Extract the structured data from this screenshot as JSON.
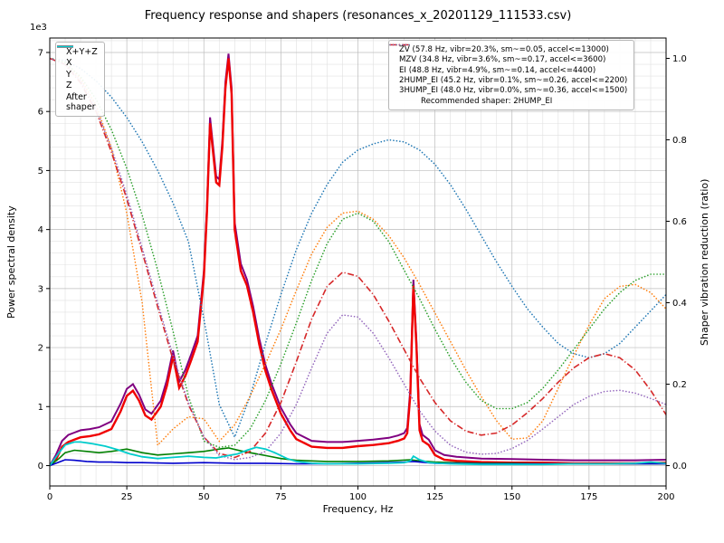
{
  "title": "Frequency response and shapers (resonances_x_20201129_111533.csv)",
  "chart_data": {
    "type": "line",
    "xlabel": "Frequency, Hz",
    "ylabel_left": "Power spectral density",
    "ylabel_right": "Shaper vibration reduction (ratio)",
    "y_multiplier_label": "1e3",
    "xlim": [
      0,
      200
    ],
    "ylim_left": [
      -0.345,
      7.245
    ],
    "ylim_right": [
      -0.05,
      1.05
    ],
    "x_ticks": [
      0,
      25,
      50,
      75,
      100,
      125,
      150,
      175,
      200
    ],
    "x_minor_step": 5,
    "y_left_ticks": [
      0,
      1,
      2,
      3,
      4,
      5,
      6,
      7
    ],
    "y_left_minor_step": 0.2,
    "y_right_ticks": [
      0,
      0.2,
      0.4,
      0.6,
      0.8,
      1
    ],
    "grid": {
      "major_color": "#bcbcbc",
      "minor_color": "#e0e0e0"
    },
    "legend_right_note": "Recommended shaper: 2HUMP_EI",
    "series": [
      {
        "name": "xyz-sum",
        "label": "X+Y+Z",
        "legend": "left",
        "axis": "left",
        "color": "#800080",
        "style": "solid",
        "width": 2.0,
        "x": [
          0,
          2,
          4,
          6,
          8,
          10,
          13,
          16,
          20,
          23,
          25,
          27,
          29,
          31,
          33,
          36,
          38,
          40,
          42,
          44,
          46,
          48,
          50,
          51,
          52,
          53,
          54,
          55,
          56,
          57,
          58,
          59,
          60,
          62,
          64,
          66,
          68,
          70,
          72,
          75,
          78,
          80,
          85,
          90,
          95,
          100,
          105,
          110,
          113,
          115,
          116,
          117,
          118,
          119,
          120,
          121,
          123,
          125,
          128,
          132,
          140,
          150,
          160,
          170,
          180,
          190,
          200
        ],
        "y": [
          0,
          0.18,
          0.42,
          0.52,
          0.56,
          0.6,
          0.62,
          0.65,
          0.75,
          1.05,
          1.3,
          1.38,
          1.2,
          0.95,
          0.88,
          1.1,
          1.45,
          1.95,
          1.42,
          1.62,
          1.9,
          2.2,
          3.3,
          4.4,
          5.9,
          5.4,
          4.9,
          4.85,
          5.5,
          6.5,
          6.98,
          6.4,
          4.12,
          3.42,
          3.15,
          2.7,
          2.15,
          1.7,
          1.38,
          0.98,
          0.7,
          0.55,
          0.42,
          0.4,
          0.4,
          0.42,
          0.44,
          0.47,
          0.51,
          0.55,
          0.64,
          1.3,
          3.15,
          2.1,
          0.7,
          0.52,
          0.44,
          0.26,
          0.18,
          0.15,
          0.12,
          0.11,
          0.1,
          0.09,
          0.09,
          0.09,
          0.1
        ]
      },
      {
        "name": "x",
        "label": "X",
        "legend": "left",
        "axis": "left",
        "color": "#f00000",
        "style": "solid",
        "width": 2.4,
        "x": [
          0,
          2,
          4,
          6,
          8,
          10,
          13,
          16,
          20,
          23,
          25,
          27,
          29,
          31,
          33,
          36,
          38,
          40,
          42,
          44,
          46,
          48,
          50,
          51,
          52,
          53,
          54,
          55,
          56,
          57,
          58,
          59,
          60,
          62,
          64,
          66,
          68,
          70,
          72,
          75,
          78,
          80,
          85,
          90,
          95,
          100,
          105,
          110,
          113,
          115,
          116,
          117,
          118,
          119,
          120,
          121,
          123,
          125,
          128,
          132,
          140,
          150,
          160,
          170,
          180,
          190,
          200
        ],
        "y": [
          0,
          0.1,
          0.32,
          0.4,
          0.44,
          0.48,
          0.5,
          0.53,
          0.62,
          0.92,
          1.18,
          1.27,
          1.1,
          0.85,
          0.78,
          1.0,
          1.35,
          1.85,
          1.32,
          1.52,
          1.8,
          2.1,
          3.2,
          4.3,
          5.8,
          5.3,
          4.8,
          4.75,
          5.4,
          6.4,
          6.9,
          6.3,
          4.0,
          3.3,
          3.05,
          2.6,
          2.05,
          1.6,
          1.28,
          0.88,
          0.6,
          0.45,
          0.32,
          0.3,
          0.3,
          0.33,
          0.35,
          0.38,
          0.42,
          0.46,
          0.55,
          1.2,
          3.05,
          2.0,
          0.6,
          0.42,
          0.35,
          0.18,
          0.1,
          0.08,
          0.06,
          0.05,
          0.05,
          0.04,
          0.04,
          0.04,
          0.05
        ]
      },
      {
        "name": "y",
        "label": "Y",
        "legend": "left",
        "axis": "left",
        "color": "#008000",
        "style": "solid",
        "width": 1.6,
        "x": [
          0,
          3,
          5,
          8,
          12,
          16,
          20,
          25,
          30,
          35,
          40,
          45,
          50,
          55,
          58,
          62,
          66,
          70,
          75,
          80,
          85,
          90,
          100,
          110,
          117,
          120,
          125,
          130,
          140,
          150,
          160,
          170,
          180,
          190,
          200
        ],
        "y": [
          0,
          0.12,
          0.22,
          0.26,
          0.24,
          0.22,
          0.24,
          0.28,
          0.22,
          0.18,
          0.2,
          0.22,
          0.24,
          0.28,
          0.3,
          0.25,
          0.21,
          0.17,
          0.12,
          0.09,
          0.08,
          0.07,
          0.07,
          0.08,
          0.1,
          0.08,
          0.06,
          0.05,
          0.04,
          0.04,
          0.03,
          0.03,
          0.03,
          0.03,
          0.03
        ]
      },
      {
        "name": "z",
        "label": "Z",
        "legend": "left",
        "axis": "left",
        "color": "#0000cc",
        "style": "solid",
        "width": 1.6,
        "x": [
          0,
          3,
          5,
          8,
          12,
          16,
          20,
          25,
          30,
          40,
          50,
          60,
          70,
          80,
          90,
          100,
          110,
          115,
          118,
          125,
          140,
          160,
          180,
          200
        ],
        "y": [
          0,
          0.06,
          0.1,
          0.09,
          0.07,
          0.06,
          0.06,
          0.05,
          0.05,
          0.04,
          0.05,
          0.04,
          0.04,
          0.03,
          0.03,
          0.04,
          0.05,
          0.06,
          0.07,
          0.04,
          0.03,
          0.03,
          0.03,
          0.03
        ]
      },
      {
        "name": "zv",
        "label": "ZV (57.8 Hz, vibr=20.3%, sm~=0.05, accel<=13000)",
        "legend": "right",
        "axis": "right",
        "color": "#1f77b4",
        "style": "dotted",
        "width": 1.6,
        "x0": 0,
        "dx": 5,
        "y": [
          1.0,
          0.995,
          0.975,
          0.945,
          0.905,
          0.855,
          0.795,
          0.725,
          0.645,
          0.55,
          0.36,
          0.15,
          0.07,
          0.17,
          0.3,
          0.42,
          0.53,
          0.62,
          0.69,
          0.745,
          0.775,
          0.79,
          0.8,
          0.795,
          0.775,
          0.74,
          0.69,
          0.63,
          0.565,
          0.5,
          0.44,
          0.385,
          0.34,
          0.3,
          0.275,
          0.265,
          0.275,
          0.3,
          0.34,
          0.38,
          0.42
        ]
      },
      {
        "name": "mzv",
        "label": "MZV (34.8 Hz, vibr=3.6%, sm~=0.17, accel<=3600)",
        "legend": "right",
        "axis": "right",
        "color": "#ff7f0e",
        "style": "dotted",
        "width": 1.6,
        "x0": 0,
        "dx": 5,
        "y": [
          1.0,
          0.99,
          0.95,
          0.885,
          0.78,
          0.62,
          0.4,
          0.05,
          0.09,
          0.12,
          0.115,
          0.06,
          0.1,
          0.17,
          0.25,
          0.335,
          0.43,
          0.52,
          0.585,
          0.62,
          0.625,
          0.605,
          0.565,
          0.51,
          0.445,
          0.375,
          0.305,
          0.235,
          0.17,
          0.11,
          0.065,
          0.068,
          0.11,
          0.19,
          0.27,
          0.345,
          0.41,
          0.44,
          0.445,
          0.425,
          0.385
        ]
      },
      {
        "name": "ei",
        "label": "EI (48.8 Hz, vibr=4.9%, sm~=0.14, accel<=4400)",
        "legend": "right",
        "axis": "right",
        "color": "#2ca02c",
        "style": "dotted",
        "width": 1.6,
        "x0": 0,
        "dx": 5,
        "y": [
          1.0,
          0.99,
          0.955,
          0.9,
          0.825,
          0.73,
          0.615,
          0.48,
          0.33,
          0.17,
          0.06,
          0.045,
          0.05,
          0.09,
          0.16,
          0.25,
          0.35,
          0.455,
          0.545,
          0.605,
          0.62,
          0.6,
          0.55,
          0.48,
          0.41,
          0.335,
          0.265,
          0.205,
          0.16,
          0.14,
          0.14,
          0.155,
          0.19,
          0.235,
          0.285,
          0.335,
          0.385,
          0.425,
          0.455,
          0.47,
          0.47
        ]
      },
      {
        "name": "2hump-ei",
        "label": "2HUMP_EI (45.2 Hz, vibr=0.1%, sm~=0.26, accel<=2200)",
        "legend": "right",
        "axis": "right",
        "color": "#d62728",
        "style": "dashdot",
        "width": 1.6,
        "x0": 0,
        "dx": 5,
        "y": [
          1.0,
          0.985,
          0.94,
          0.87,
          0.77,
          0.655,
          0.525,
          0.39,
          0.26,
          0.15,
          0.07,
          0.03,
          0.02,
          0.035,
          0.08,
          0.155,
          0.255,
          0.36,
          0.44,
          0.475,
          0.465,
          0.42,
          0.355,
          0.285,
          0.215,
          0.155,
          0.11,
          0.085,
          0.075,
          0.08,
          0.1,
          0.13,
          0.165,
          0.205,
          0.24,
          0.265,
          0.275,
          0.265,
          0.235,
          0.185,
          0.125
        ]
      },
      {
        "name": "3hump-ei",
        "label": "3HUMP_EI (48.0 Hz, vibr=0.0%, sm~=0.36, accel<=1500)",
        "legend": "right",
        "axis": "right",
        "color": "#9467bd",
        "style": "dotted",
        "width": 1.6,
        "x0": 0,
        "dx": 5,
        "y": [
          1.0,
          0.985,
          0.945,
          0.875,
          0.78,
          0.665,
          0.535,
          0.4,
          0.27,
          0.155,
          0.07,
          0.025,
          0.015,
          0.02,
          0.035,
          0.08,
          0.15,
          0.24,
          0.325,
          0.37,
          0.365,
          0.325,
          0.265,
          0.2,
          0.135,
          0.085,
          0.05,
          0.033,
          0.028,
          0.03,
          0.042,
          0.062,
          0.09,
          0.12,
          0.15,
          0.17,
          0.182,
          0.185,
          0.178,
          0.165,
          0.15
        ]
      },
      {
        "name": "after-shaper",
        "label": "After\nshaper",
        "legend": "left",
        "axis": "left",
        "color": "#00cccc",
        "style": "solid",
        "width": 1.8,
        "x": [
          0,
          3,
          5,
          8,
          10,
          14,
          18,
          22,
          26,
          30,
          35,
          40,
          45,
          50,
          54,
          58,
          61,
          64,
          67,
          70,
          73,
          77,
          80,
          85,
          90,
          100,
          110,
          115,
          117,
          118,
          120,
          123,
          126,
          130,
          140,
          150,
          160,
          170,
          180,
          190,
          195,
          200
        ],
        "y": [
          0,
          0.22,
          0.35,
          0.4,
          0.4,
          0.37,
          0.33,
          0.27,
          0.2,
          0.15,
          0.12,
          0.14,
          0.16,
          0.14,
          0.13,
          0.17,
          0.2,
          0.26,
          0.31,
          0.28,
          0.22,
          0.12,
          0.07,
          0.04,
          0.03,
          0.03,
          0.04,
          0.05,
          0.08,
          0.16,
          0.1,
          0.05,
          0.04,
          0.03,
          0.02,
          0.02,
          0.02,
          0.03,
          0.03,
          0.04,
          0.06,
          0.04
        ]
      }
    ]
  }
}
